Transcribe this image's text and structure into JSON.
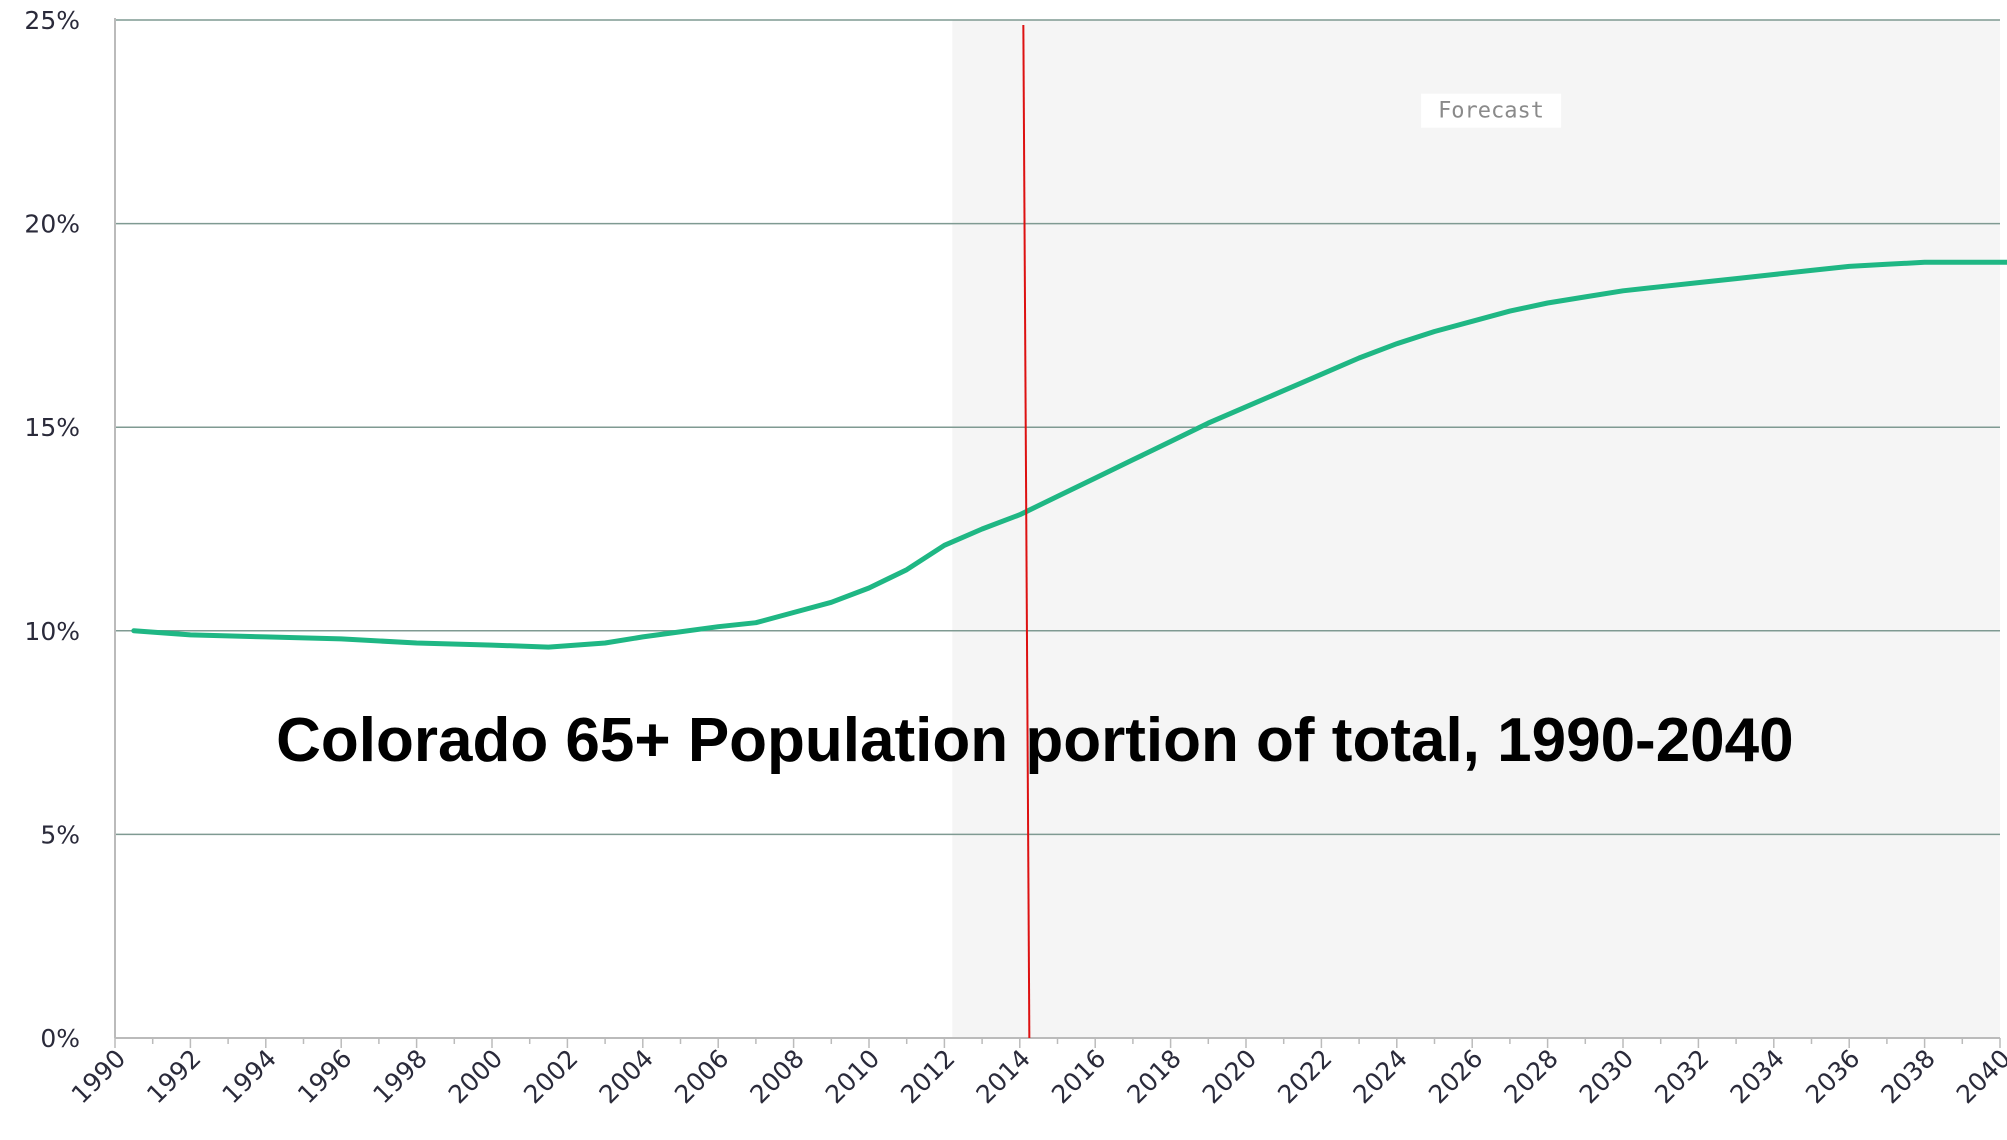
{
  "chart_data": {
    "type": "line",
    "title": "Colorado 65+ Population portion of total, 1990-2040",
    "xlabel": "",
    "ylabel": "",
    "xlim": [
      1990,
      2040
    ],
    "ylim": [
      0,
      25
    ],
    "x_ticks": [
      "1990",
      "1992",
      "1994",
      "1996",
      "1998",
      "2000",
      "2002",
      "2004",
      "2006",
      "2008",
      "2010",
      "2012",
      "2014",
      "2016",
      "2018",
      "2020",
      "2022",
      "2024",
      "2026",
      "2028",
      "2030",
      "2032",
      "2034",
      "2036",
      "2038",
      "2040"
    ],
    "y_ticks": [
      "0%",
      "5%",
      "10%",
      "15%",
      "20%",
      "25%"
    ],
    "grid": true,
    "forecast_start": 2014.2,
    "forecast_label": "Forecast",
    "series": [
      {
        "color": "#1fb784",
        "points": [
          [
            1990.5,
            10.0
          ],
          [
            1992,
            9.9
          ],
          [
            1994,
            9.85
          ],
          [
            1996,
            9.8
          ],
          [
            1998,
            9.7
          ],
          [
            2000,
            9.65
          ],
          [
            2001.5,
            9.6
          ],
          [
            2003,
            9.7
          ],
          [
            2004,
            9.85
          ],
          [
            2006,
            10.1
          ],
          [
            2007,
            10.2
          ],
          [
            2008,
            10.45
          ],
          [
            2009,
            10.7
          ],
          [
            2010,
            11.05
          ],
          [
            2011,
            11.5
          ],
          [
            2012,
            12.1
          ],
          [
            2013,
            12.5
          ],
          [
            2014,
            12.85
          ],
          [
            2015,
            13.3
          ],
          [
            2016,
            13.75
          ],
          [
            2017,
            14.2
          ],
          [
            2018,
            14.65
          ],
          [
            2019,
            15.1
          ],
          [
            2020,
            15.5
          ],
          [
            2021,
            15.9
          ],
          [
            2022,
            16.3
          ],
          [
            2023,
            16.7
          ],
          [
            2024,
            17.05
          ],
          [
            2025,
            17.35
          ],
          [
            2026,
            17.6
          ],
          [
            2027,
            17.85
          ],
          [
            2028,
            18.05
          ],
          [
            2029,
            18.2
          ],
          [
            2030,
            18.35
          ],
          [
            2031,
            18.45
          ],
          [
            2032,
            18.55
          ],
          [
            2033,
            18.65
          ],
          [
            2034,
            18.75
          ],
          [
            2035,
            18.85
          ],
          [
            2036,
            18.95
          ],
          [
            2037,
            19.0
          ],
          [
            2038,
            19.05
          ],
          [
            2039,
            19.05
          ],
          [
            2040,
            19.05
          ],
          [
            2040.5,
            19.05
          ]
        ]
      }
    ],
    "colors": {
      "line": "#1fb784",
      "forecast_line": "#dd1111",
      "grid": "#7f9a92",
      "axis": "#bbbbbb",
      "forecast_bg": "#f5f5f5"
    }
  }
}
